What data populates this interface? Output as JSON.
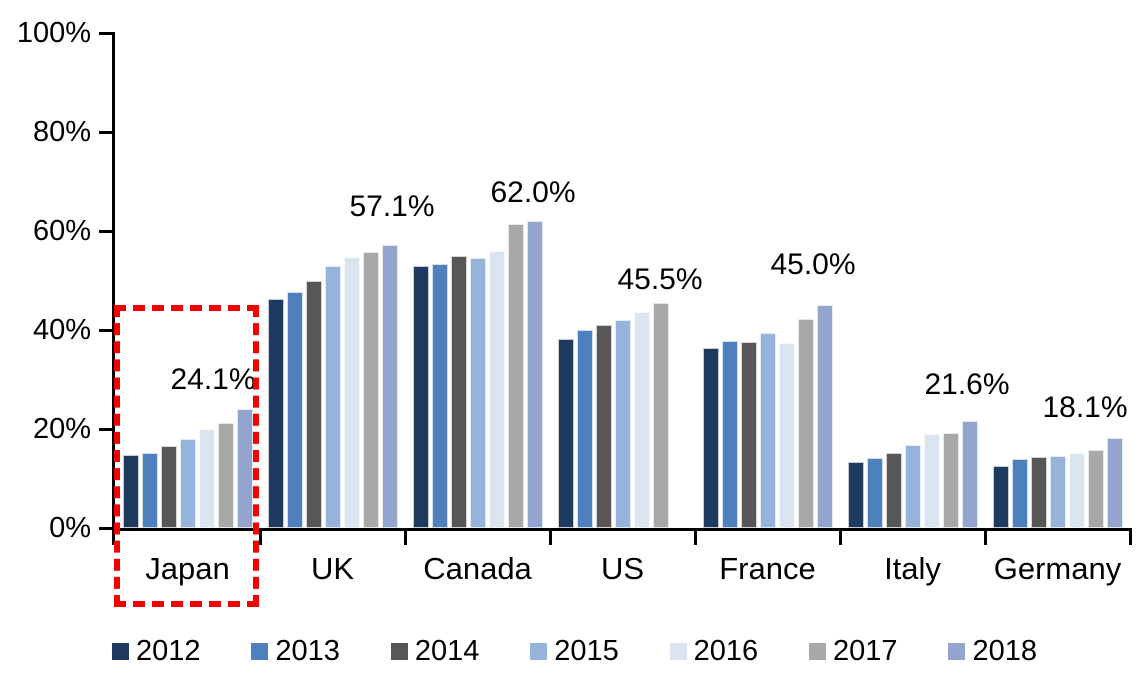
{
  "chart_data": {
    "type": "bar",
    "title": "",
    "xlabel": "",
    "ylabel": "",
    "ylim": [
      0,
      100
    ],
    "grid": false,
    "legend_position": "bottom",
    "y_axis_ticks": [
      "0%",
      "20%",
      "40%",
      "60%",
      "80%",
      "100%"
    ],
    "categories": [
      "Japan",
      "UK",
      "Canada",
      "US",
      "France",
      "Italy",
      "Germany"
    ],
    "series": [
      {
        "name": "2012",
        "color": "#1F3A5F",
        "values": [
          14.8,
          46.2,
          52.9,
          38.2,
          36.4,
          13.3,
          12.5
        ]
      },
      {
        "name": "2013",
        "color": "#4E80BD",
        "values": [
          15.2,
          47.6,
          53.3,
          40.0,
          37.7,
          14.1,
          13.9
        ]
      },
      {
        "name": "2014",
        "color": "#575757",
        "values": [
          16.5,
          49.8,
          54.9,
          41.0,
          37.5,
          15.2,
          14.3
        ]
      },
      {
        "name": "2015",
        "color": "#95B3DB",
        "values": [
          18.0,
          53.0,
          54.6,
          42.1,
          39.3,
          16.8,
          14.6
        ]
      },
      {
        "name": "2016",
        "color": "#DBE5F1",
        "values": [
          19.9,
          54.7,
          56.0,
          43.6,
          37.3,
          18.9,
          15.2
        ]
      },
      {
        "name": "2017",
        "color": "#A8A8A8",
        "values": [
          21.2,
          55.7,
          61.5,
          45.5,
          42.2,
          19.2,
          15.8
        ]
      },
      {
        "name": "2018",
        "color": "#93A5CF",
        "values": [
          24.1,
          57.1,
          62.0,
          null,
          45.0,
          21.6,
          18.1
        ]
      }
    ],
    "data_labels": [
      "24.1%",
      "57.1%",
      "62.0%",
      "45.5%",
      "45.0%",
      "21.6%",
      "18.1%"
    ],
    "annotations": {
      "highlight_box": {
        "category": "Japan",
        "style": "red-dashed-rectangle"
      }
    },
    "colors": {
      "axis": "#000000",
      "highlight": "#F40000",
      "background": "#FFFFFF"
    }
  }
}
